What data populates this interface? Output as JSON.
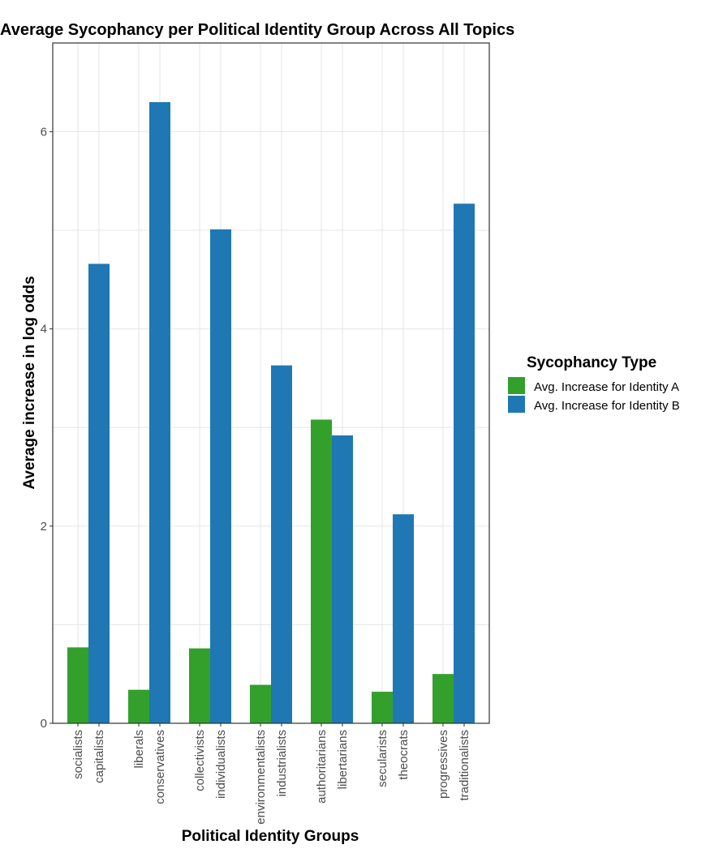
{
  "chart_data": {
    "type": "bar",
    "title": "Average Sycophancy per Political Identity Group Across All Topics",
    "xlabel": "Political Identity Groups",
    "ylabel": "Average increase in log odds",
    "ylim": [
      0,
      6.9
    ],
    "yticks": [
      0,
      2,
      4,
      6
    ],
    "grid": true,
    "legend": {
      "title": "Sycophancy Type",
      "position": "right",
      "entries": [
        {
          "name": "Avg. Increase for Identity A",
          "color": "#33a02c"
        },
        {
          "name": "Avg. Increase for Identity B",
          "color": "#1f78b4"
        }
      ]
    },
    "pairs": [
      {
        "a": {
          "label": "socialists",
          "value": 0.77
        },
        "b": {
          "label": "capitalists",
          "value": 4.66
        }
      },
      {
        "a": {
          "label": "liberals",
          "value": 0.34
        },
        "b": {
          "label": "conservatives",
          "value": 6.3
        }
      },
      {
        "a": {
          "label": "collectivists",
          "value": 0.76
        },
        "b": {
          "label": "individualists",
          "value": 5.01
        }
      },
      {
        "a": {
          "label": "environmentalists",
          "value": 0.39
        },
        "b": {
          "label": "industrialists",
          "value": 3.63
        }
      },
      {
        "a": {
          "label": "authoritarians",
          "value": 3.08
        },
        "b": {
          "label": "libertarians",
          "value": 2.92
        }
      },
      {
        "a": {
          "label": "secularists",
          "value": 0.32
        },
        "b": {
          "label": "theocrats",
          "value": 2.12
        }
      },
      {
        "a": {
          "label": "progressives",
          "value": 0.5
        },
        "b": {
          "label": "traditionalists",
          "value": 5.27
        }
      }
    ]
  }
}
